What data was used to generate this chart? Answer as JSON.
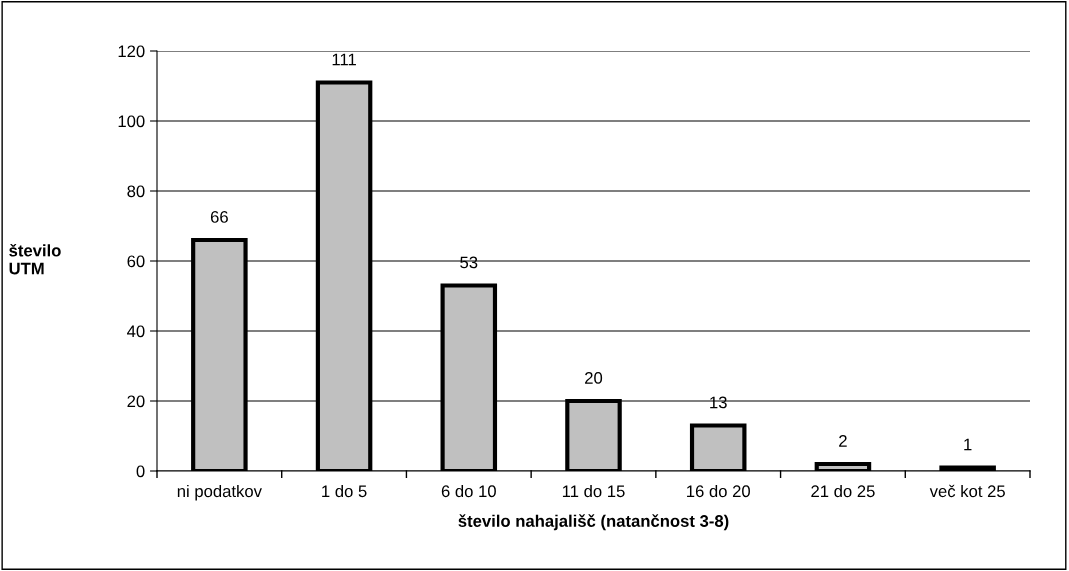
{
  "chart_data": {
    "type": "bar",
    "xlabel": "število nahajališč (natančnost 3-8)",
    "ylabel": "število\nUTM",
    "categories": [
      "ni podatkov",
      "1 do 5",
      "6 do 10",
      "11 do 15",
      "16 do 20",
      "21 do 25",
      "več kot 25"
    ],
    "values": [
      66,
      111,
      53,
      20,
      13,
      2,
      1
    ],
    "color": "#c0c0c0",
    "ylim": [
      0,
      120
    ],
    "yticks": [
      0,
      20,
      40,
      60,
      80,
      100,
      120
    ],
    "grid": "y",
    "data_labels": true
  }
}
